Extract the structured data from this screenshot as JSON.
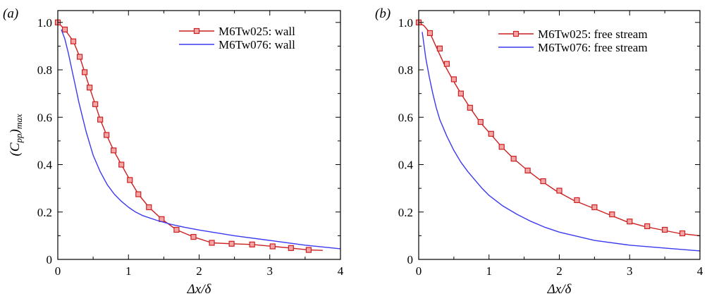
{
  "colors": {
    "red": "#cc1f1f",
    "blue": "#3a3af0",
    "marker_fill": "#f4a6a6"
  },
  "chart_data": [
    {
      "type": "line",
      "panel_label": "(a)",
      "xlabel": "Δx/δ",
      "ylabel": "(Cpp)max",
      "xlim": [
        0,
        4
      ],
      "ylim": [
        0,
        1.05
      ],
      "xticks": [
        "0",
        "1",
        "2",
        "3",
        "4"
      ],
      "yticks": [
        "0",
        "0.2",
        "0.4",
        "0.6",
        "0.8",
        "1.0"
      ],
      "grid": false,
      "legend_position": "top-right",
      "series": [
        {
          "name": "M6Tw025: wall",
          "color": "#cc1f1f",
          "marker": "square",
          "x": [
            0,
            0.1,
            0.22,
            0.31,
            0.38,
            0.45,
            0.53,
            0.6,
            0.69,
            0.79,
            0.9,
            1.02,
            1.14,
            1.29,
            1.47,
            1.68,
            1.92,
            2.18,
            2.46,
            2.75,
            3.04,
            3.3,
            3.55,
            3.75
          ],
          "y": [
            1.0,
            0.97,
            0.92,
            0.855,
            0.79,
            0.725,
            0.655,
            0.59,
            0.525,
            0.46,
            0.4,
            0.335,
            0.275,
            0.22,
            0.17,
            0.125,
            0.095,
            0.07,
            0.066,
            0.063,
            0.055,
            0.048,
            0.04,
            0.038
          ],
          "markers_x": [
            0,
            0.1,
            0.22,
            0.31,
            0.38,
            0.45,
            0.53,
            0.6,
            0.69,
            0.79,
            0.9,
            1.02,
            1.14,
            1.29,
            1.47,
            1.68,
            1.92,
            2.18,
            2.46,
            2.75,
            3.04,
            3.3,
            3.55
          ],
          "markers_y": [
            1.0,
            0.97,
            0.92,
            0.855,
            0.79,
            0.725,
            0.655,
            0.59,
            0.525,
            0.46,
            0.4,
            0.335,
            0.275,
            0.22,
            0.17,
            0.125,
            0.095,
            0.07,
            0.066,
            0.063,
            0.055,
            0.048,
            0.04
          ]
        },
        {
          "name": "M6Tw076: wall",
          "color": "#3a3af0",
          "marker": "none",
          "x": [
            0.05,
            0.1,
            0.15,
            0.2,
            0.25,
            0.3,
            0.35,
            0.4,
            0.5,
            0.6,
            0.7,
            0.8,
            0.9,
            1.0,
            1.1,
            1.2,
            1.4,
            1.6,
            1.8,
            2.0,
            2.5,
            3.0,
            3.5,
            4.0
          ],
          "y": [
            0.97,
            0.93,
            0.87,
            0.8,
            0.73,
            0.66,
            0.6,
            0.54,
            0.44,
            0.37,
            0.315,
            0.275,
            0.245,
            0.22,
            0.2,
            0.185,
            0.165,
            0.148,
            0.135,
            0.124,
            0.1,
            0.08,
            0.06,
            0.045
          ]
        }
      ]
    },
    {
      "type": "line",
      "panel_label": "(b)",
      "xlabel": "Δx/δ",
      "ylabel": "",
      "xlim": [
        0,
        4
      ],
      "ylim": [
        0,
        1.05
      ],
      "xticks": [
        "0",
        "1",
        "2",
        "3",
        "4"
      ],
      "yticks": [
        "0",
        "0.2",
        "0.4",
        "0.6",
        "0.8",
        "1.0"
      ],
      "grid": false,
      "legend_position": "top-right",
      "series": [
        {
          "name": "M6Tw025: free stream",
          "color": "#cc1f1f",
          "marker": "square",
          "x": [
            0,
            0.08,
            0.16,
            0.26,
            0.36,
            0.48,
            0.6,
            0.73,
            0.87,
            1.02,
            1.18,
            1.35,
            1.55,
            1.75,
            1.95,
            2.2,
            2.45,
            2.7,
            2.95,
            3.2,
            3.45,
            3.7,
            4.0
          ],
          "y": [
            1.0,
            0.985,
            0.955,
            0.89,
            0.825,
            0.76,
            0.7,
            0.64,
            0.58,
            0.53,
            0.475,
            0.425,
            0.375,
            0.33,
            0.29,
            0.25,
            0.22,
            0.19,
            0.16,
            0.14,
            0.125,
            0.11,
            0.1
          ],
          "markers_x": [
            0,
            0.16,
            0.3,
            0.4,
            0.5,
            0.6,
            0.73,
            0.88,
            1.03,
            1.18,
            1.35,
            1.55,
            1.77,
            2.0,
            2.25,
            2.5,
            2.75,
            3.0,
            3.25,
            3.5,
            3.75
          ],
          "markers_y": [
            1.0,
            0.955,
            0.89,
            0.825,
            0.76,
            0.7,
            0.64,
            0.58,
            0.53,
            0.475,
            0.425,
            0.375,
            0.33,
            0.29,
            0.25,
            0.22,
            0.19,
            0.16,
            0.14,
            0.125,
            0.11
          ]
        },
        {
          "name": "M6Tw076: free stream",
          "color": "#3a3af0",
          "marker": "none",
          "x": [
            0.05,
            0.1,
            0.15,
            0.2,
            0.25,
            0.3,
            0.4,
            0.5,
            0.6,
            0.7,
            0.8,
            0.9,
            1.0,
            1.2,
            1.4,
            1.6,
            1.8,
            2.0,
            2.5,
            3.0,
            3.5,
            4.0
          ],
          "y": [
            0.96,
            0.85,
            0.77,
            0.7,
            0.64,
            0.59,
            0.52,
            0.46,
            0.41,
            0.37,
            0.335,
            0.3,
            0.27,
            0.225,
            0.19,
            0.16,
            0.135,
            0.115,
            0.08,
            0.06,
            0.048,
            0.036
          ]
        }
      ]
    }
  ]
}
